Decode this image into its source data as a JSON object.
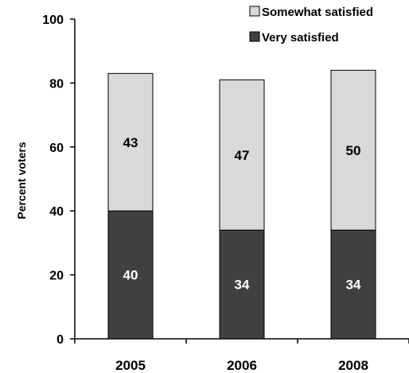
{
  "chart_data": {
    "type": "bar",
    "stacked": true,
    "categories": [
      "2005",
      "2006",
      "2008"
    ],
    "series": [
      {
        "name": "Very satisfied",
        "values": [
          40,
          34,
          34
        ],
        "color": "#404040",
        "label_color": "#ffffff"
      },
      {
        "name": "Somewhat satisfied",
        "values": [
          43,
          47,
          50
        ],
        "color": "#d9d9d9",
        "label_color": "#000000"
      }
    ],
    "legend_order": [
      "Somewhat satisfied",
      "Very satisfied"
    ],
    "ylabel": "Percent voters",
    "xlabel": "",
    "ylim": [
      0,
      100
    ],
    "yticks": [
      0,
      20,
      40,
      60,
      80,
      100
    ],
    "grid": false,
    "legend_position": "top-right"
  }
}
